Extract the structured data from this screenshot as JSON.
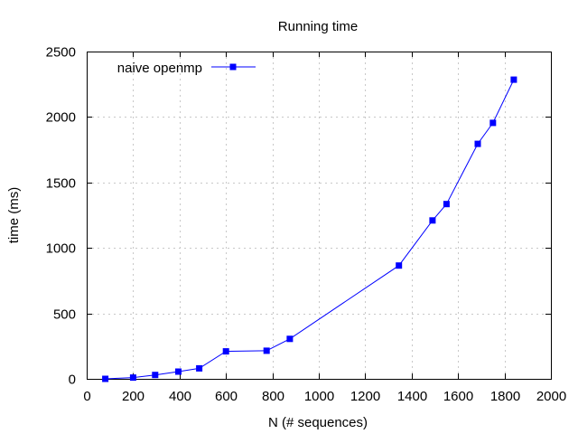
{
  "chart_data": {
    "type": "line",
    "title": "Running time",
    "xlabel": "N (# sequences)",
    "ylabel": "time (ms)",
    "xlim": [
      0,
      2000
    ],
    "ylim": [
      0,
      2500
    ],
    "xticks": [
      0,
      200,
      400,
      600,
      800,
      1000,
      1200,
      1400,
      1600,
      1800,
      2000
    ],
    "yticks": [
      0,
      500,
      1000,
      1500,
      2000,
      2500
    ],
    "grid": true,
    "legend_position": "top-left",
    "series": [
      {
        "name": "naive openmp",
        "color": "#0000ff",
        "marker": "square",
        "x": [
          80,
          200,
          295,
          395,
          485,
          600,
          775,
          875,
          1345,
          1490,
          1550,
          1685,
          1750,
          1840
        ],
        "y": [
          0,
          10,
          30,
          55,
          80,
          210,
          215,
          305,
          865,
          1210,
          1335,
          1795,
          1955,
          2285
        ]
      }
    ]
  }
}
